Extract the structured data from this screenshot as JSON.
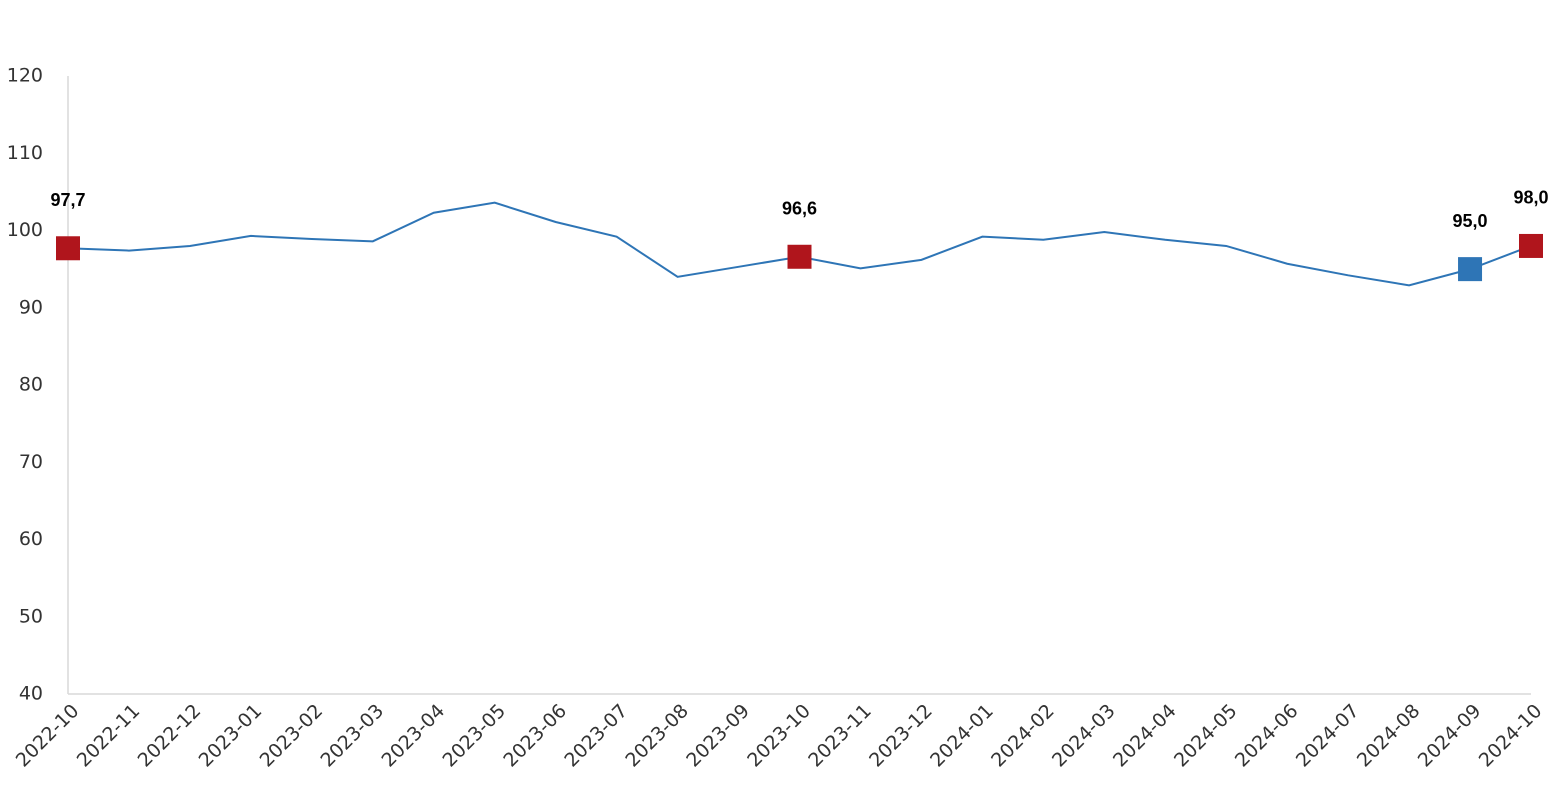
{
  "chart_data": {
    "type": "line",
    "categories": [
      "2022-10",
      "2022-11",
      "2022-12",
      "2023-01",
      "2023-02",
      "2023-03",
      "2023-04",
      "2023-05",
      "2023-06",
      "2023-07",
      "2023-08",
      "2023-09",
      "2023-10",
      "2023-11",
      "2023-12",
      "2024-01",
      "2024-02",
      "2024-03",
      "2024-04",
      "2024-05",
      "2024-06",
      "2024-07",
      "2024-08",
      "2024-09",
      "2024-10"
    ],
    "values": [
      97.7,
      97.4,
      98.0,
      99.3,
      98.9,
      98.6,
      102.3,
      103.6,
      101.1,
      99.2,
      94.0,
      95.3,
      96.6,
      95.1,
      96.2,
      99.2,
      98.8,
      99.8,
      98.8,
      98.0,
      95.7,
      94.2,
      92.9,
      95.0,
      98.0
    ],
    "value_labels": [
      "97,7",
      null,
      null,
      null,
      null,
      null,
      null,
      null,
      null,
      null,
      null,
      null,
      "96,6",
      null,
      null,
      null,
      null,
      null,
      null,
      null,
      null,
      null,
      null,
      "95,0",
      "98,0"
    ],
    "marker_colors": [
      "#b0151c",
      null,
      null,
      null,
      null,
      null,
      null,
      null,
      null,
      null,
      null,
      null,
      "#b0151c",
      null,
      null,
      null,
      null,
      null,
      null,
      null,
      null,
      null,
      null,
      "#2e75b6",
      "#b0151c"
    ],
    "color": "#2e75b6",
    "ylim": [
      40,
      120
    ],
    "yticks": [
      40,
      50,
      60,
      70,
      80,
      90,
      100,
      110,
      120
    ],
    "grid": false
  }
}
